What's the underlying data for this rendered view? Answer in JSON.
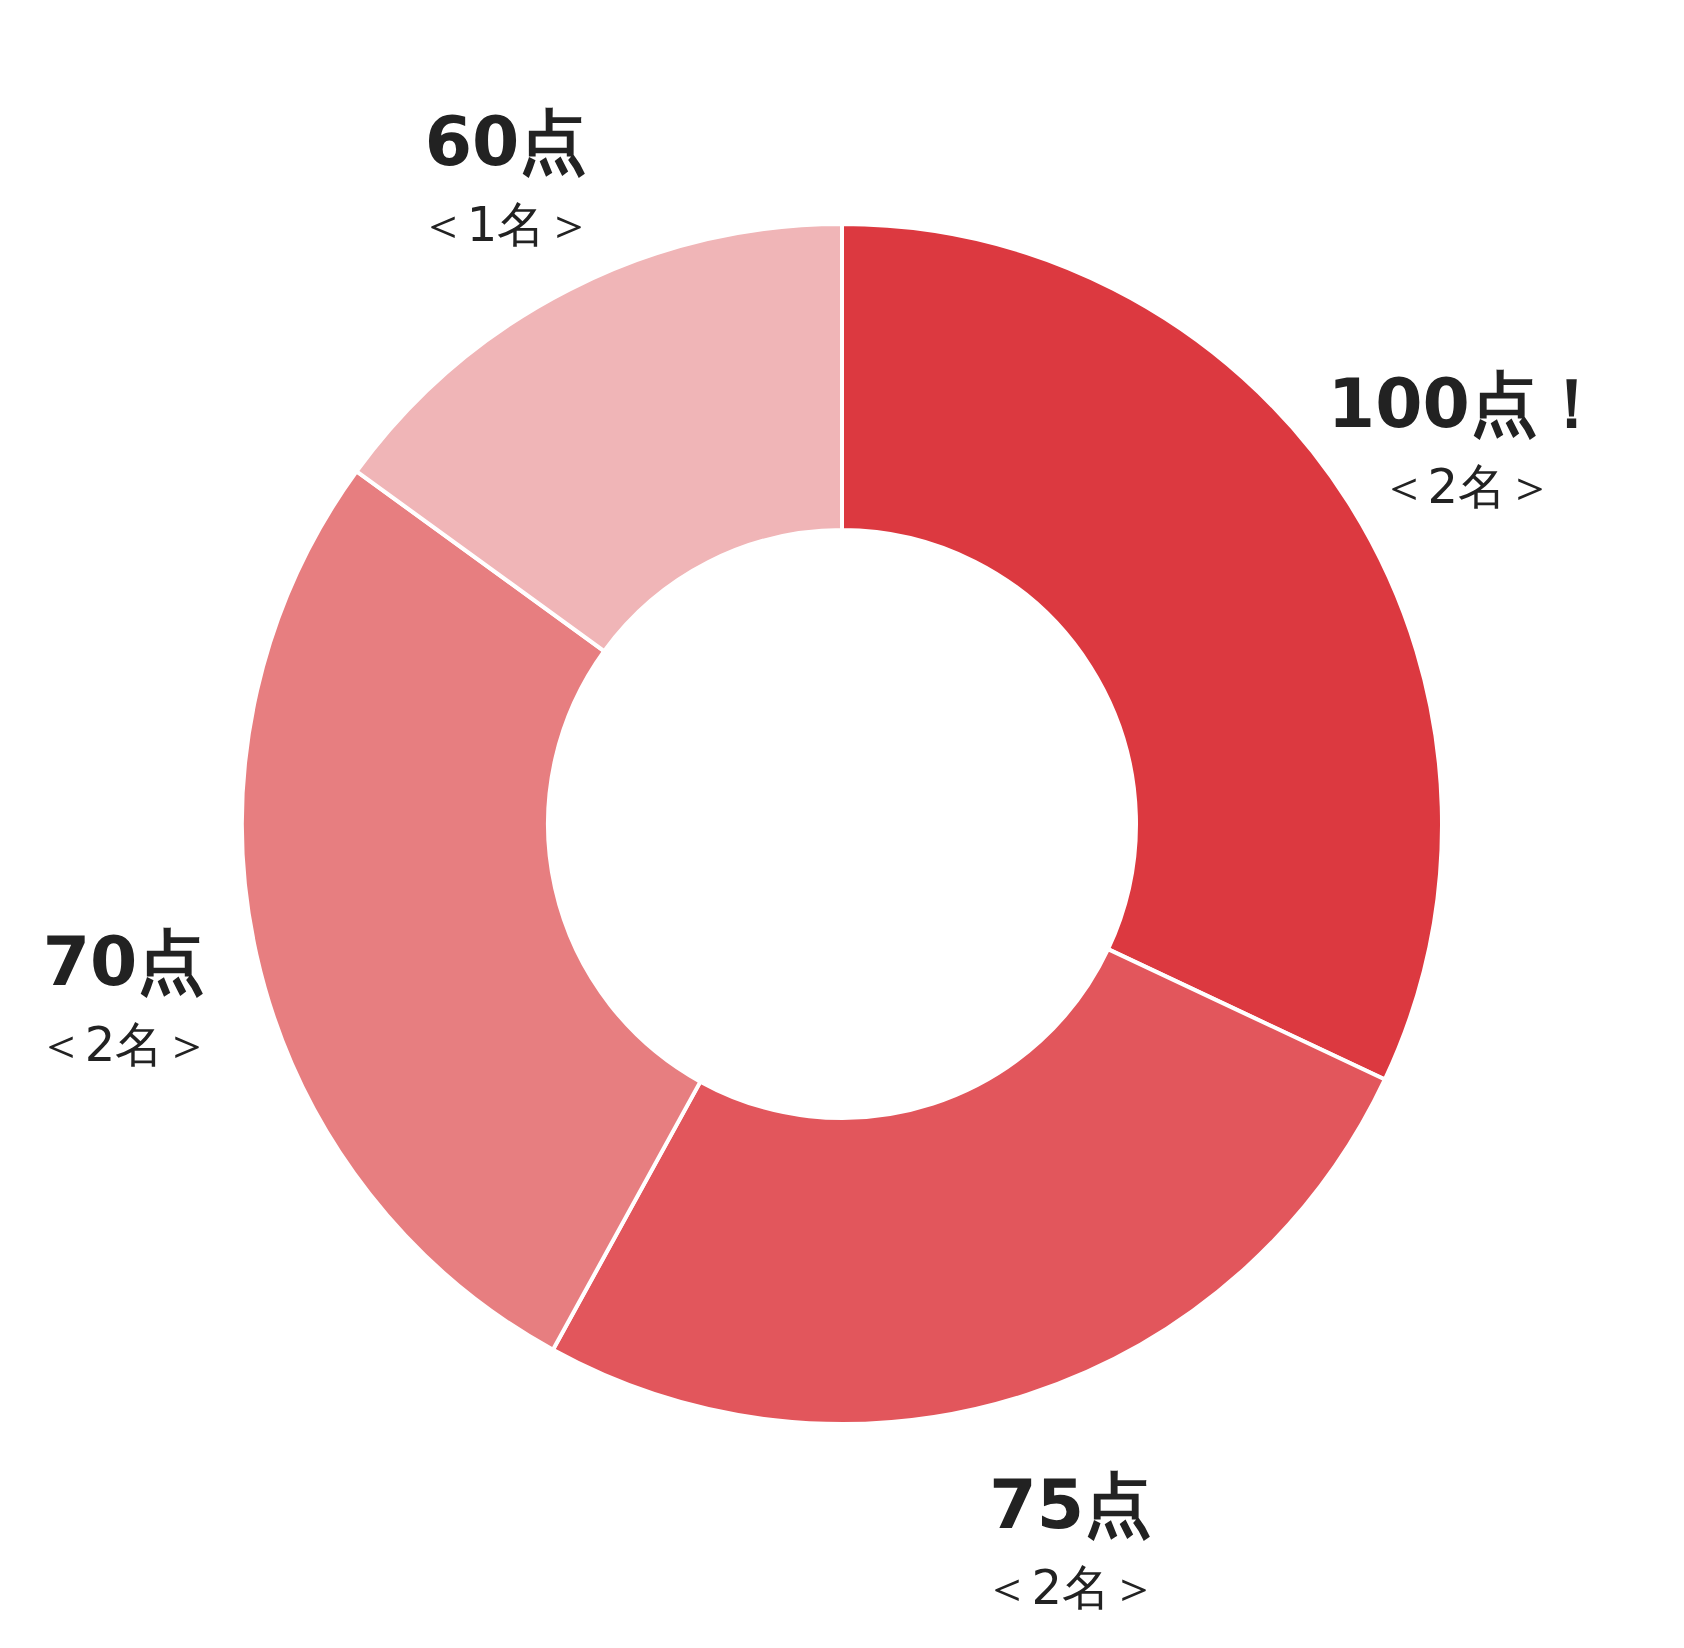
{
  "chart_data": {
    "type": "donut",
    "categories": [
      "100点！",
      "75点",
      "70点",
      "60点"
    ],
    "values": [
      32,
      26,
      27,
      15
    ],
    "colors": [
      "#dc3940",
      "#e2565c",
      "#e77e80",
      "#f0b5b7"
    ],
    "annotations": [
      "＜2名＞",
      "＜2名＞",
      "＜2名＞",
      "＜1名＞"
    ]
  }
}
